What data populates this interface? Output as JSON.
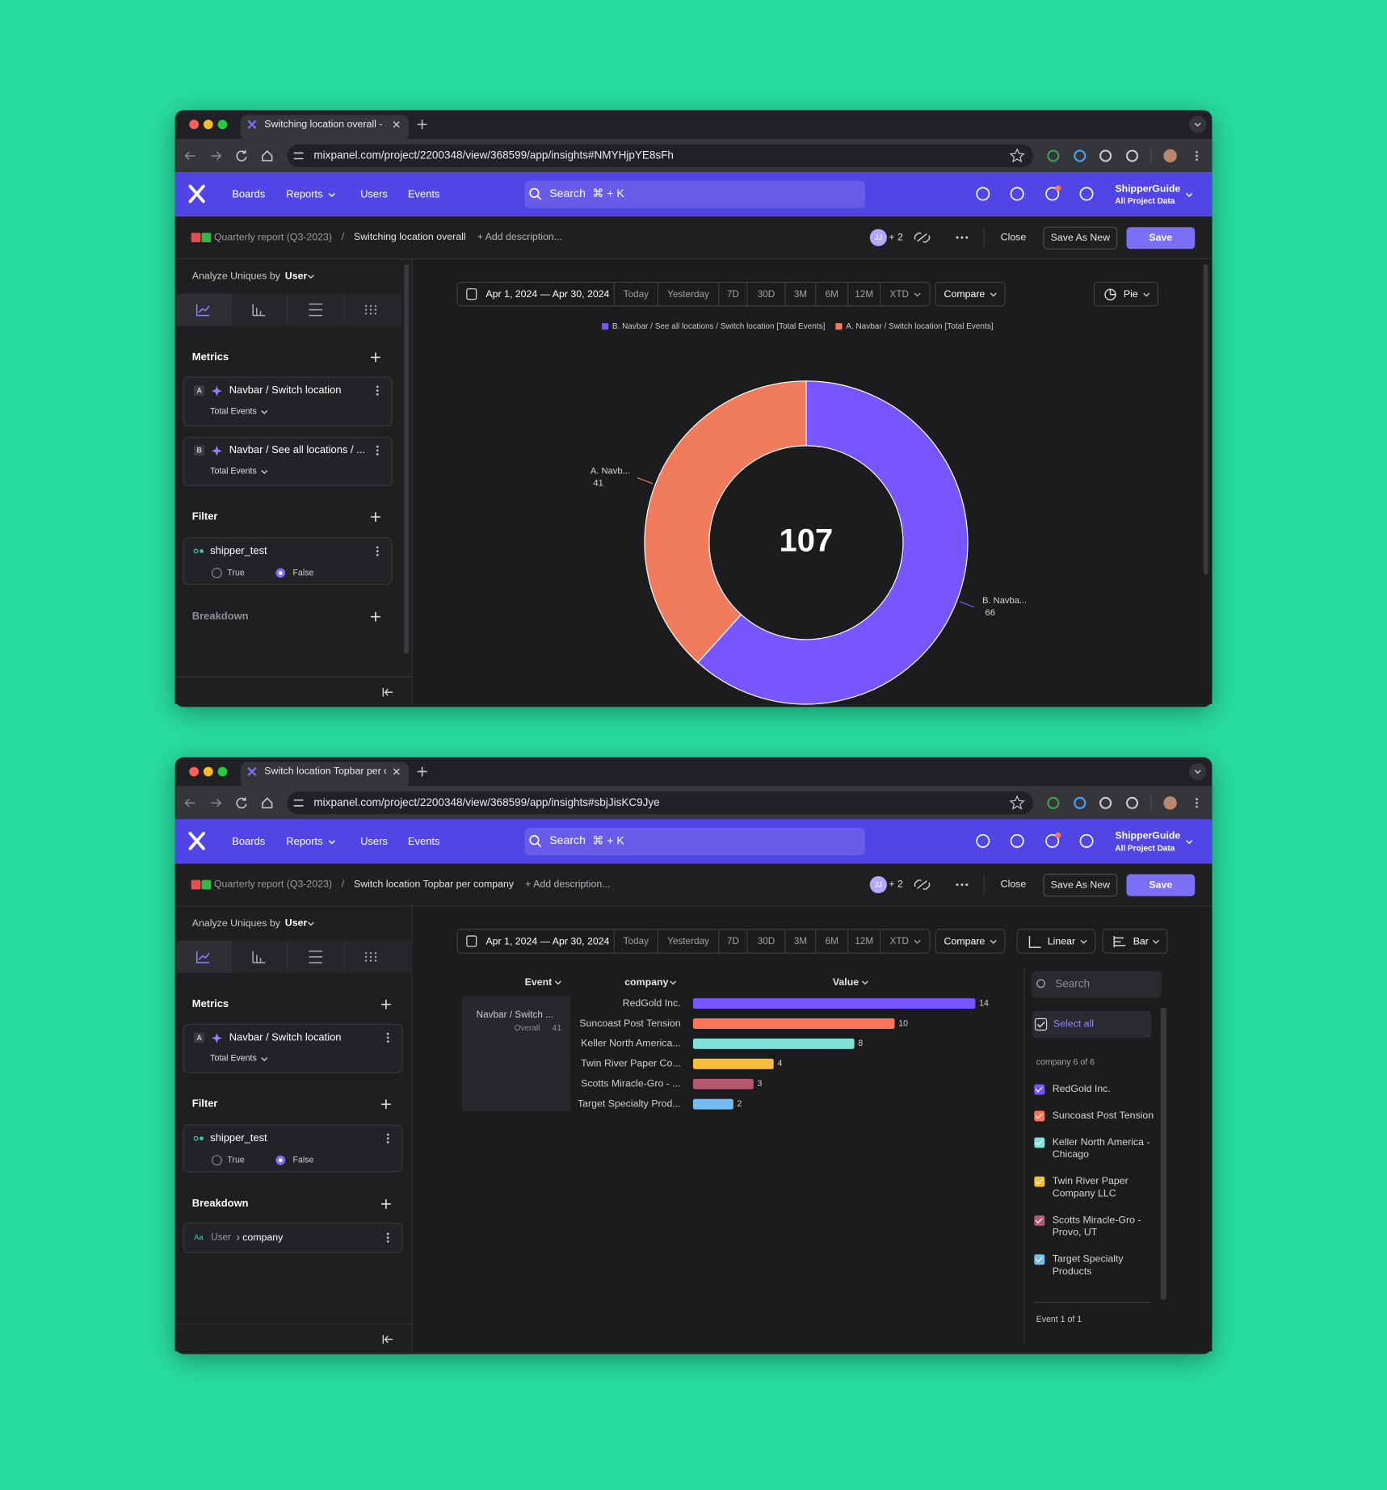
{
  "nav": {
    "items": [
      "Boards",
      "Reports",
      "Users",
      "Events"
    ],
    "search": "Search",
    "shortcut": "⌘ + K",
    "org": "ShipperGuide",
    "org_scope": "All Project Data"
  },
  "header": {
    "breadcrumb_parent": "Quarterly report (Q3-2023)",
    "separator": "/",
    "add_description": "+ Add description...",
    "avatar": "JJ",
    "collaborators": "+ 2",
    "close": "Close",
    "save_as_new": "Save As New",
    "save": "Save"
  },
  "controls": {
    "date_range": "Apr 1, 2024 — Apr 30, 2024",
    "ranges": [
      "Today",
      "Yesterday",
      "7D",
      "30D",
      "3M",
      "6M",
      "12M",
      "XTD"
    ],
    "compare": "Compare"
  },
  "sidebar": {
    "analyze_label": "Analyze Uniques by",
    "analyze_value": "User",
    "metrics": "Metrics",
    "filter": "Filter",
    "breakdown": "Breakdown",
    "measure": "Total Events",
    "true_option": "True",
    "false_option": "False"
  },
  "windows": [
    {
      "tab_title": "Switching location overall - S",
      "url": "mixpanel.com/project/2200348/view/368599/app/insights#NMYHjpYE8sFh",
      "title": "Switching location overall",
      "metrics": [
        {
          "letter": "A",
          "name": "Navbar / Switch location"
        },
        {
          "letter": "B",
          "name": "Navbar / See all locations / ..."
        }
      ],
      "filter_property": "shipper_test",
      "breakdowns": [],
      "chart_data": {
        "type": "pie",
        "chart_type": "Pie",
        "total": 107,
        "series": [
          {
            "name": "B. Navbar / See all locations / Switch location [Total Events]",
            "label": "B. Navba...",
            "value": 66,
            "color": "#7856ff"
          },
          {
            "name": "A. Navbar / Switch location [Total Events]",
            "label": "A. Navb...",
            "value": 41,
            "color": "#f07c5d"
          }
        ]
      }
    },
    {
      "tab_title": "Switch location Topbar per co",
      "url": "mixpanel.com/project/2200348/view/368599/app/insights#sbjJisKC9Jye",
      "title": "Switch location Topbar per company",
      "metrics": [
        {
          "letter": "A",
          "name": "Navbar / Switch location"
        }
      ],
      "filter_property": "shipper_test",
      "breakdowns": [
        {
          "icon": "Aa",
          "source": "User",
          "property": "company"
        }
      ],
      "chart_data": {
        "type": "bar",
        "scale": "Linear",
        "chart_type": "Bar",
        "columns": [
          "Event",
          "company",
          "Value"
        ],
        "event": "Navbar / Switch ...",
        "event_scope": "Overall",
        "event_total": 41,
        "categories": [
          "RedGold Inc.",
          "Suncoast Post Tension",
          "Keller North America...",
          "Twin River Paper Co...",
          "Scotts Miracle-Gro - ...",
          "Target Specialty Prod..."
        ],
        "values": [
          14,
          10,
          8,
          4,
          3,
          2
        ],
        "colors": [
          "#7856ff",
          "#ff7557",
          "#80e1d9",
          "#f8bc3b",
          "#b2596e",
          "#72bef4"
        ],
        "panel": {
          "search": "Search",
          "select_all": "Select all",
          "group_label": "company 6 of 6",
          "items": [
            "RedGold Inc.",
            "Suncoast Post Tension",
            "Keller North America - Chicago",
            "Twin River Paper Company LLC",
            "Scotts Miracle-Gro - Provo, UT",
            "Target Specialty Products"
          ],
          "footer": "Event 1 of 1"
        }
      }
    }
  ]
}
